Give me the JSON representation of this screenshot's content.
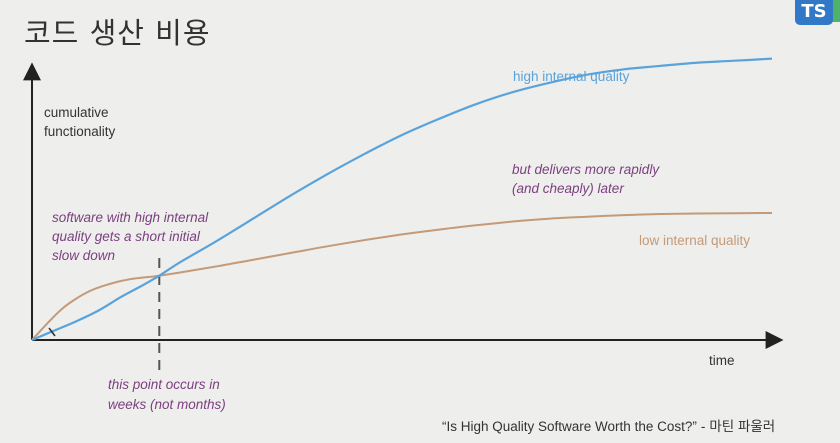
{
  "slide": {
    "title": "코드 생산 비용",
    "badge": "TS",
    "citation_quote": "“Is High Quality Software Worth the Cost?”",
    "citation_separator": "-",
    "citation_author": "마틴 파울러"
  },
  "colors": {
    "high": "#5aa3da",
    "low": "#c49a78",
    "annotation": "#7b3f80",
    "axis": "#222222",
    "text": "#333333"
  },
  "chart_data": {
    "type": "line",
    "title": "",
    "xlabel": "time",
    "ylabel_lines": [
      "cumulative",
      "functionality"
    ],
    "xlim": [
      0,
      100
    ],
    "ylim": [
      0,
      100
    ],
    "grid": false,
    "crossover_x": 17.2,
    "series": [
      {
        "name": "high internal quality",
        "color": "#5aa3da",
        "x": [
          0,
          3,
          6,
          9,
          12,
          15,
          17.2,
          20,
          25,
          30,
          35,
          40,
          45,
          50,
          55,
          60,
          65,
          70,
          75,
          80,
          85,
          90,
          95,
          100
        ],
        "y": [
          0,
          3.5,
          7,
          11,
          16,
          20.5,
          24,
          29,
          37,
          45.5,
          54,
          62,
          69.5,
          76.5,
          82.5,
          88,
          92.5,
          96,
          99,
          101,
          102.3,
          103.5,
          104.2,
          105
        ]
      },
      {
        "name": "low internal quality",
        "color": "#c49a78",
        "x": [
          0,
          2,
          4,
          6,
          8,
          10,
          12,
          14,
          17.2,
          20,
          25,
          30,
          35,
          40,
          45,
          50,
          55,
          60,
          65,
          70,
          75,
          80,
          85,
          90,
          95,
          100
        ],
        "y": [
          0,
          6,
          11.5,
          15.5,
          18.5,
          20.5,
          22,
          23,
          24,
          25.2,
          27.5,
          30,
          32.5,
          35,
          37.3,
          39.4,
          41.2,
          42.8,
          44.2,
          45.3,
          46,
          46.6,
          47,
          47.2,
          47.3,
          47.4
        ]
      }
    ],
    "annotations": {
      "high_label": "high internal quality",
      "low_label": "low internal quality",
      "slowdown": [
        "software with high internal",
        "quality gets a short initial",
        "slow down"
      ],
      "rapid": [
        "but delivers more rapidly",
        "(and cheaply) later"
      ],
      "point": [
        "this point occurs in",
        "weeks (not months)"
      ]
    }
  }
}
